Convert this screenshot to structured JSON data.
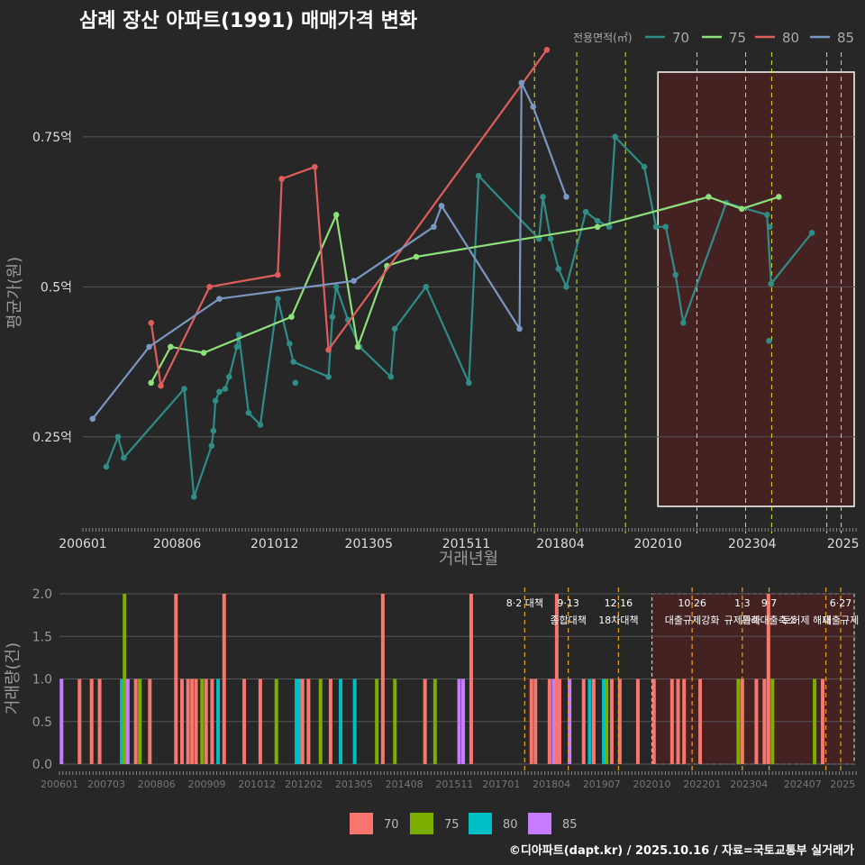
{
  "page": {
    "title": "삼례 장산 아파트(1991) 매매가격 변화",
    "footer": "©디아파트(dapt.kr) / 2025.10.16 / 자료=국토교통부 실거래가"
  },
  "colors": {
    "background": "#272727",
    "grid": "#555555",
    "text": "#dddddd",
    "tick": "#bbbbbb",
    "s70_line": "#2f8c86",
    "s75_line": "#8ee07b",
    "s80_line": "#e05d5d",
    "s85_line": "#7a96c2",
    "bar70": "#f8766d",
    "bar75": "#7cae00",
    "bar80": "#00bfc4",
    "bar85": "#c77cff",
    "policy": "#e0e030",
    "policy_bar": "#e09a20",
    "highlight_fill": "#4a2222"
  },
  "chart_data": [
    {
      "type": "line",
      "title": "삼례 장산 아파트(1991) 매매가격 변화",
      "xlabel": "거래년월",
      "ylabel": "평균가(원)",
      "legend_title": "전용면적(㎡)",
      "xlim": [
        2006.0,
        2025.83
      ],
      "ylim": [
        0.11,
        0.9
      ],
      "x_ticks": [
        {
          "x": 2006.0,
          "label": "200601"
        },
        {
          "x": 2008.417,
          "label": "200806"
        },
        {
          "x": 2010.917,
          "label": "201012"
        },
        {
          "x": 2013.333,
          "label": "201305"
        },
        {
          "x": 2015.833,
          "label": "201511"
        },
        {
          "x": 2018.25,
          "label": "201804"
        },
        {
          "x": 2020.75,
          "label": "202010"
        },
        {
          "x": 2023.167,
          "label": "202304"
        },
        {
          "x": 2025.5,
          "label": "2025"
        }
      ],
      "y_ticks": [
        {
          "y": 0.25,
          "label": "0.25억"
        },
        {
          "y": 0.5,
          "label": "0.5억"
        },
        {
          "y": 0.75,
          "label": "0.75억"
        }
      ],
      "policy_lines": [
        2017.583,
        2018.667,
        2019.917,
        2021.75,
        2023.0,
        2023.667,
        2025.08,
        2025.45
      ],
      "highlight": {
        "from": 2020.75,
        "to": 2025.83
      },
      "series": [
        {
          "name": "70",
          "color_key": "s70_line",
          "points": [
            [
              2006.6,
              0.2
            ],
            [
              2006.9,
              0.25
            ],
            [
              2007.05,
              0.215
            ],
            [
              2008.6,
              0.33
            ],
            [
              2008.85,
              0.15
            ],
            [
              2009.3,
              0.235
            ],
            [
              2009.35,
              0.26
            ],
            [
              2009.4,
              0.31
            ],
            [
              2009.5,
              0.325
            ],
            [
              2009.65,
              0.33
            ],
            [
              2009.75,
              0.35
            ],
            [
              2009.95,
              0.4
            ],
            [
              2010.0,
              0.42
            ],
            [
              2010.25,
              0.29
            ],
            [
              2010.55,
              0.27
            ],
            [
              2011.0,
              0.48
            ],
            [
              2011.4,
              0.375
            ],
            [
              2012.3,
              0.35
            ],
            [
              2012.4,
              0.45
            ],
            [
              2012.5,
              0.5
            ],
            [
              2012.8,
              0.445
            ],
            [
              2013.1,
              0.4
            ],
            [
              2013.9,
              0.35
            ],
            [
              2014.0,
              0.43
            ],
            [
              2014.8,
              0.5
            ],
            [
              2015.9,
              0.34
            ],
            [
              2016.15,
              0.685
            ],
            [
              2017.7,
              0.58
            ],
            [
              2017.8,
              0.65
            ],
            [
              2018.0,
              0.58
            ],
            [
              2018.2,
              0.53
            ],
            [
              2018.4,
              0.5
            ],
            [
              2018.9,
              0.625
            ],
            [
              2019.2,
              0.61
            ],
            [
              2019.5,
              0.6
            ],
            [
              2019.65,
              0.75
            ],
            [
              2020.4,
              0.7
            ],
            [
              2020.7,
              0.6
            ],
            [
              2020.95,
              0.6
            ],
            [
              2021.2,
              0.52
            ],
            [
              2021.4,
              0.44
            ],
            [
              2022.5,
              0.64
            ],
            [
              2023.55,
              0.62
            ],
            [
              2023.65,
              0.505
            ],
            [
              2024.7,
              0.59
            ]
          ]
        },
        {
          "name": "75",
          "color_key": "s75_line",
          "points": [
            [
              2007.75,
              0.34
            ],
            [
              2008.25,
              0.4
            ],
            [
              2009.1,
              0.39
            ],
            [
              2011.35,
              0.45
            ],
            [
              2012.5,
              0.62
            ],
            [
              2013.05,
              0.4
            ],
            [
              2013.8,
              0.535
            ],
            [
              2014.55,
              0.55
            ],
            [
              2019.2,
              0.6
            ],
            [
              2022.05,
              0.65
            ],
            [
              2022.9,
              0.63
            ],
            [
              2023.85,
              0.65
            ]
          ]
        },
        {
          "name": "80",
          "color_key": "s80_line",
          "points": [
            [
              2007.75,
              0.44
            ],
            [
              2008.0,
              0.335
            ],
            [
              2009.25,
              0.5
            ],
            [
              2011.0,
              0.52
            ],
            [
              2011.1,
              0.68
            ],
            [
              2011.95,
              0.7
            ],
            [
              2012.3,
              0.395
            ],
            [
              2017.9,
              0.895
            ]
          ]
        },
        {
          "name": "85",
          "color_key": "s85_line",
          "points": [
            [
              2006.25,
              0.28
            ],
            [
              2007.7,
              0.4
            ],
            [
              2009.5,
              0.48
            ],
            [
              2012.95,
              0.51
            ],
            [
              2015.0,
              0.6
            ],
            [
              2015.2,
              0.635
            ],
            [
              2017.2,
              0.43
            ],
            [
              2017.25,
              0.84
            ],
            [
              2017.55,
              0.8
            ],
            [
              2018.4,
              0.65
            ]
          ]
        }
      ],
      "extra_points": [
        {
          "x": 2011.3,
          "y": 0.405,
          "color_key": "s70_line"
        },
        {
          "x": 2011.45,
          "y": 0.34,
          "color_key": "s70_line"
        },
        {
          "x": 2023.6,
          "y": 0.41,
          "color_key": "s70_line"
        },
        {
          "x": 2023.62,
          "y": 0.6,
          "color_key": "s70_line"
        }
      ]
    },
    {
      "type": "bar",
      "ylabel": "거래량(건)",
      "xlim": [
        2006.0,
        2025.83
      ],
      "ylim": [
        0,
        2.0
      ],
      "y_ticks": [
        {
          "y": 0.0,
          "label": "0.0"
        },
        {
          "y": 0.5,
          "label": "0.5"
        },
        {
          "y": 1.0,
          "label": "1.0"
        },
        {
          "y": 1.5,
          "label": "1.5"
        },
        {
          "y": 2.0,
          "label": "2.0"
        }
      ],
      "x_ticks": [
        {
          "x": 2006.0,
          "label": "200601"
        },
        {
          "x": 2007.167,
          "label": "200703"
        },
        {
          "x": 2008.417,
          "label": "200806"
        },
        {
          "x": 2009.667,
          "label": "200909"
        },
        {
          "x": 2010.917,
          "label": "201012"
        },
        {
          "x": 2012.083,
          "label": "201202"
        },
        {
          "x": 2013.333,
          "label": "201305"
        },
        {
          "x": 2014.583,
          "label": "201408"
        },
        {
          "x": 2015.833,
          "label": "201511"
        },
        {
          "x": 2017.0,
          "label": "201701"
        },
        {
          "x": 2018.25,
          "label": "201804"
        },
        {
          "x": 2019.5,
          "label": "201907"
        },
        {
          "x": 2020.75,
          "label": "202010"
        },
        {
          "x": 2022.0,
          "label": "202201"
        },
        {
          "x": 2023.167,
          "label": "202304"
        },
        {
          "x": 2024.5,
          "label": "202407"
        },
        {
          "x": 2025.5,
          "label": "2025"
        }
      ],
      "policy_lines": [
        2017.583,
        2018.667,
        2019.917,
        2021.75,
        2023.0,
        2023.667,
        2025.08,
        2025.45
      ],
      "annotations": [
        {
          "x": 2017.583,
          "line1": "8·2 대책",
          "line2": ""
        },
        {
          "x": 2018.667,
          "line1": "9·13",
          "line2": "종합대책"
        },
        {
          "x": 2019.917,
          "line1": "12·16",
          "line2": "18차대책"
        },
        {
          "x": 2021.75,
          "line1": "10·26",
          "line2": "대출규제강화"
        },
        {
          "x": 2023.0,
          "line1": "1·3",
          "line2": "규제완화"
        },
        {
          "x": 2023.667,
          "line1": "9·7",
          "line2": "특례대출축소"
        },
        {
          "x": 2024.6,
          "line1": "",
          "line2": "토허제 해제"
        },
        {
          "x": 2025.45,
          "line1": "6·27",
          "line2": "대출규제"
        }
      ],
      "highlight": {
        "from": 2020.75,
        "to": 2025.83
      },
      "bars": [
        {
          "x": 2006.05,
          "v": 1,
          "s": "85"
        },
        {
          "x": 2006.5,
          "v": 1,
          "s": "70"
        },
        {
          "x": 2006.8,
          "v": 1,
          "s": "70"
        },
        {
          "x": 2007.0,
          "v": 1,
          "s": "70"
        },
        {
          "x": 2007.55,
          "v": 1,
          "s": "80"
        },
        {
          "x": 2007.62,
          "v": 2,
          "s": "75"
        },
        {
          "x": 2007.7,
          "v": 1,
          "s": "85"
        },
        {
          "x": 2007.9,
          "v": 1,
          "s": "70"
        },
        {
          "x": 2008.0,
          "v": 1,
          "s": "75"
        },
        {
          "x": 2008.25,
          "v": 1,
          "s": "70"
        },
        {
          "x": 2008.9,
          "v": 2,
          "s": "70"
        },
        {
          "x": 2009.05,
          "v": 1,
          "s": "70"
        },
        {
          "x": 2009.2,
          "v": 1,
          "s": "70"
        },
        {
          "x": 2009.3,
          "v": 1,
          "s": "70"
        },
        {
          "x": 2009.4,
          "v": 1,
          "s": "70"
        },
        {
          "x": 2009.55,
          "v": 1,
          "s": "75"
        },
        {
          "x": 2009.65,
          "v": 1,
          "s": "70"
        },
        {
          "x": 2009.8,
          "v": 1,
          "s": "70"
        },
        {
          "x": 2009.95,
          "v": 1,
          "s": "80"
        },
        {
          "x": 2010.1,
          "v": 2,
          "s": "70"
        },
        {
          "x": 2010.6,
          "v": 1,
          "s": "70"
        },
        {
          "x": 2011.0,
          "v": 1,
          "s": "70"
        },
        {
          "x": 2011.4,
          "v": 1,
          "s": "75"
        },
        {
          "x": 2011.9,
          "v": 1,
          "s": "80"
        },
        {
          "x": 2011.98,
          "v": 1,
          "s": "80"
        },
        {
          "x": 2012.05,
          "v": 1,
          "s": "70"
        },
        {
          "x": 2012.2,
          "v": 1,
          "s": "70"
        },
        {
          "x": 2012.5,
          "v": 1,
          "s": "75"
        },
        {
          "x": 2012.75,
          "v": 1,
          "s": "70"
        },
        {
          "x": 2013.0,
          "v": 1,
          "s": "80"
        },
        {
          "x": 2013.35,
          "v": 1,
          "s": "80"
        },
        {
          "x": 2013.9,
          "v": 1,
          "s": "75"
        },
        {
          "x": 2014.05,
          "v": 2,
          "s": "70"
        },
        {
          "x": 2014.35,
          "v": 1,
          "s": "75"
        },
        {
          "x": 2015.1,
          "v": 1,
          "s": "70"
        },
        {
          "x": 2015.35,
          "v": 1,
          "s": "75"
        },
        {
          "x": 2015.95,
          "v": 1,
          "s": "85"
        },
        {
          "x": 2016.05,
          "v": 1,
          "s": "85"
        },
        {
          "x": 2016.25,
          "v": 2,
          "s": "70"
        },
        {
          "x": 2017.75,
          "v": 1,
          "s": "70"
        },
        {
          "x": 2017.85,
          "v": 1,
          "s": "70"
        },
        {
          "x": 2018.2,
          "v": 1,
          "s": "70"
        },
        {
          "x": 2018.3,
          "v": 1,
          "s": "85"
        },
        {
          "x": 2018.38,
          "v": 2,
          "s": "70"
        },
        {
          "x": 2018.45,
          "v": 1,
          "s": "70"
        },
        {
          "x": 2018.7,
          "v": 1,
          "s": "85"
        },
        {
          "x": 2019.05,
          "v": 1,
          "s": "70"
        },
        {
          "x": 2019.2,
          "v": 1,
          "s": "80"
        },
        {
          "x": 2019.3,
          "v": 1,
          "s": "70"
        },
        {
          "x": 2019.55,
          "v": 1,
          "s": "80"
        },
        {
          "x": 2019.62,
          "v": 1,
          "s": "75"
        },
        {
          "x": 2019.75,
          "v": 1,
          "s": "70"
        },
        {
          "x": 2019.95,
          "v": 1,
          "s": "70"
        },
        {
          "x": 2020.4,
          "v": 1,
          "s": "70"
        },
        {
          "x": 2020.8,
          "v": 1,
          "s": "70"
        },
        {
          "x": 2021.25,
          "v": 1,
          "s": "70"
        },
        {
          "x": 2021.4,
          "v": 1,
          "s": "70"
        },
        {
          "x": 2021.55,
          "v": 1,
          "s": "70"
        },
        {
          "x": 2021.95,
          "v": 1,
          "s": "70"
        },
        {
          "x": 2022.9,
          "v": 1,
          "s": "75"
        },
        {
          "x": 2023.0,
          "v": 1,
          "s": "70"
        },
        {
          "x": 2023.35,
          "v": 1,
          "s": "70"
        },
        {
          "x": 2023.55,
          "v": 1,
          "s": "70"
        },
        {
          "x": 2023.65,
          "v": 2,
          "s": "70"
        },
        {
          "x": 2023.75,
          "v": 1,
          "s": "75"
        },
        {
          "x": 2024.8,
          "v": 1,
          "s": "75"
        },
        {
          "x": 2025.0,
          "v": 1,
          "s": "70"
        }
      ],
      "legend": [
        {
          "label": "70",
          "color_key": "bar70"
        },
        {
          "label": "75",
          "color_key": "bar75"
        },
        {
          "label": "80",
          "color_key": "bar80"
        },
        {
          "label": "85",
          "color_key": "bar85"
        }
      ]
    }
  ]
}
